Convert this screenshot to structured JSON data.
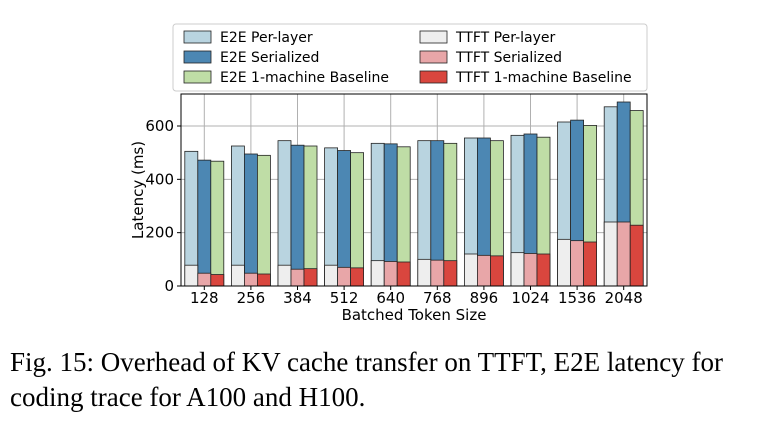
{
  "chart_data": {
    "type": "bar",
    "categories": [
      "128",
      "256",
      "384",
      "512",
      "640",
      "768",
      "896",
      "1024",
      "1536",
      "2048"
    ],
    "xlabel": "Batched Token Size",
    "ylabel": "Latency (ms)",
    "ylim": [
      0,
      720
    ],
    "yticks": [
      0,
      200,
      400,
      600
    ],
    "grid": true,
    "legend_position": "top",
    "series": [
      {
        "name": "E2E Per-layer",
        "kind": "e2e",
        "slot": 0,
        "color": "#b9d4e0",
        "values": [
          505,
          525,
          545,
          518,
          535,
          545,
          555,
          565,
          615,
          672
        ]
      },
      {
        "name": "E2E Serialized",
        "kind": "e2e",
        "slot": 1,
        "color": "#4c87b3",
        "values": [
          472,
          495,
          528,
          508,
          533,
          545,
          555,
          570,
          622,
          690
        ]
      },
      {
        "name": "E2E 1-machine Baseline",
        "kind": "e2e",
        "slot": 2,
        "color": "#bfdda6",
        "values": [
          468,
          490,
          525,
          500,
          522,
          535,
          545,
          558,
          602,
          658
        ]
      },
      {
        "name": "TTFT Per-layer",
        "kind": "ttft",
        "slot": 0,
        "color": "#eeeeee",
        "values": [
          78,
          78,
          78,
          78,
          95,
          100,
          120,
          125,
          175,
          240
        ]
      },
      {
        "name": "TTFT Serialized",
        "kind": "ttft",
        "slot": 1,
        "color": "#e8a6a8",
        "values": [
          48,
          48,
          63,
          70,
          92,
          97,
          115,
          122,
          170,
          240
        ]
      },
      {
        "name": "TTFT 1-machine Baseline",
        "kind": "ttft",
        "slot": 2,
        "color": "#d9463e",
        "values": [
          43,
          45,
          65,
          68,
          90,
          95,
          113,
          120,
          165,
          228
        ]
      }
    ]
  },
  "caption": "Fig. 15: Overhead of KV cache transfer on TTFT, E2E latency for coding trace for A100 and H100."
}
